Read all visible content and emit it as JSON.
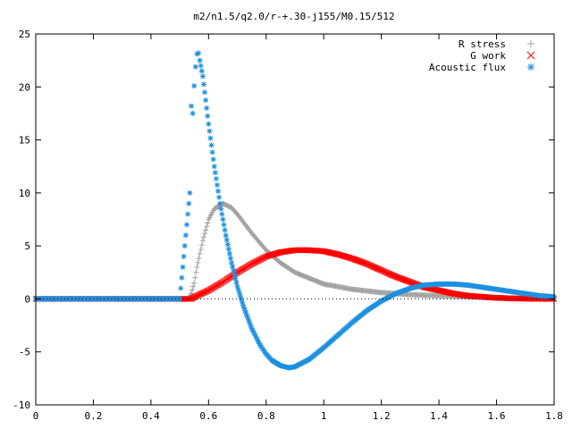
{
  "chart_data": {
    "type": "scatter",
    "title": "m2/n1.5/q2.0/r-+.30-j155/M0.15/512",
    "xlabel": "",
    "ylabel": "",
    "xlim": [
      0,
      1.8
    ],
    "ylim": [
      -10,
      25
    ],
    "x_ticks": [
      0,
      0.2,
      0.4,
      0.6,
      0.8,
      1,
      1.2,
      1.4,
      1.6,
      1.8
    ],
    "x_tick_labels": [
      "0",
      "0.2",
      "0.4",
      "0.6",
      "0.8",
      "1",
      "1.2",
      "1.4",
      "1.6",
      "1.8"
    ],
    "y_ticks": [
      -10,
      -5,
      0,
      5,
      10,
      15,
      20,
      25
    ],
    "y_tick_labels": [
      "-10",
      "-5",
      "0",
      "5",
      "10",
      "15",
      "20",
      "25"
    ],
    "grid": false,
    "legend_position": "top-right",
    "series": [
      {
        "name": "R stress",
        "marker": "plus",
        "color": "#a0a0a0",
        "x": [
          0,
          0.1,
          0.2,
          0.3,
          0.4,
          0.5,
          0.53,
          0.54,
          0.55,
          0.56,
          0.58,
          0.6,
          0.62,
          0.65,
          0.68,
          0.7,
          0.75,
          0.8,
          0.85,
          0.9,
          1.0,
          1.1,
          1.2,
          1.3,
          1.4,
          1.5,
          1.6,
          1.7,
          1.8
        ],
        "y": [
          0,
          0,
          0,
          0,
          0,
          0,
          0,
          0.5,
          1.5,
          3.0,
          5.5,
          7.5,
          8.5,
          9.0,
          8.6,
          8.0,
          6.2,
          4.6,
          3.4,
          2.5,
          1.4,
          0.9,
          0.6,
          0.4,
          0.3,
          0.2,
          0.1,
          0.05,
          0
        ]
      },
      {
        "name": "G work",
        "marker": "cross",
        "color": "#ff0000",
        "x": [
          0,
          0.1,
          0.2,
          0.3,
          0.4,
          0.5,
          0.54,
          0.56,
          0.6,
          0.65,
          0.7,
          0.75,
          0.8,
          0.85,
          0.9,
          0.95,
          1.0,
          1.05,
          1.1,
          1.15,
          1.2,
          1.25,
          1.3,
          1.35,
          1.4,
          1.45,
          1.5,
          1.55,
          1.6,
          1.65,
          1.7,
          1.75,
          1.8
        ],
        "y": [
          0,
          0,
          0,
          0,
          0,
          0,
          0,
          0.3,
          0.8,
          1.6,
          2.5,
          3.3,
          4.0,
          4.4,
          4.6,
          4.6,
          4.5,
          4.2,
          3.8,
          3.3,
          2.7,
          2.1,
          1.6,
          1.1,
          0.8,
          0.5,
          0.3,
          0.2,
          0.1,
          0.05,
          0.02,
          0.01,
          0
        ]
      },
      {
        "name": "Acoustic flux",
        "marker": "star",
        "color": "#1e90e0",
        "x": [
          0,
          0.1,
          0.2,
          0.3,
          0.4,
          0.5,
          0.535,
          0.54,
          0.545,
          0.55,
          0.555,
          0.56,
          0.565,
          0.57,
          0.58,
          0.6,
          0.62,
          0.64,
          0.66,
          0.68,
          0.7,
          0.72,
          0.75,
          0.78,
          0.8,
          0.82,
          0.85,
          0.88,
          0.9,
          0.95,
          1.0,
          1.05,
          1.1,
          1.15,
          1.2,
          1.25,
          1.3,
          1.35,
          1.4,
          1.45,
          1.5,
          1.55,
          1.6,
          1.65,
          1.7,
          1.75,
          1.8
        ],
        "y": [
          0,
          0,
          0,
          0,
          0,
          0,
          10.0,
          18.2,
          17.5,
          20.1,
          21.9,
          23.1,
          23.2,
          22.5,
          21.0,
          16.5,
          12.5,
          9.0,
          6.0,
          3.4,
          1.2,
          -0.6,
          -2.8,
          -4.4,
          -5.2,
          -5.8,
          -6.3,
          -6.5,
          -6.4,
          -5.7,
          -4.6,
          -3.4,
          -2.2,
          -1.1,
          -0.2,
          0.5,
          1.0,
          1.3,
          1.4,
          1.4,
          1.3,
          1.1,
          0.9,
          0.7,
          0.5,
          0.3,
          0.2
        ]
      }
    ]
  }
}
